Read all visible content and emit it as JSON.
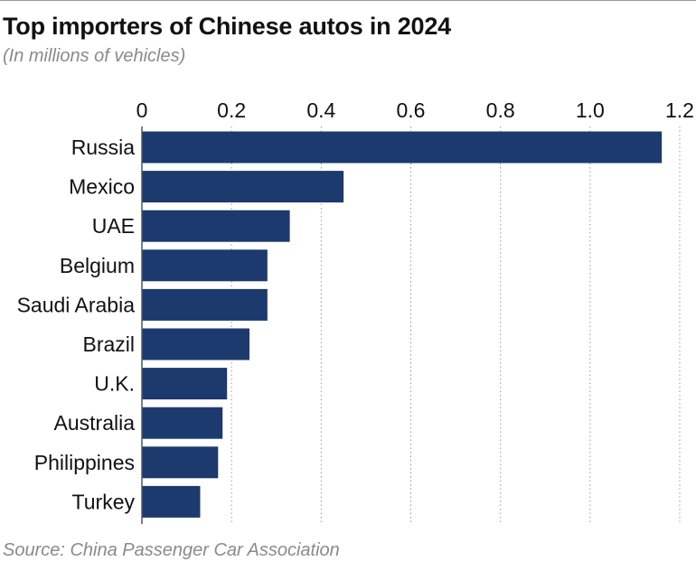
{
  "header": {
    "title": "Top importers of Chinese autos in 2024",
    "subtitle": "(In millions of vehicles)"
  },
  "footer": {
    "source": "Source: China Passenger Car Association"
  },
  "colors": {
    "bar": "#1c3a6e",
    "grid": "#9a9a9a",
    "axis": "#555555",
    "muted_text": "#8a8a8a"
  },
  "chart_data": {
    "type": "bar",
    "orientation": "horizontal",
    "title": "Top importers of Chinese autos in 2024",
    "subtitle": "(In millions of vehicles)",
    "xlabel": "",
    "ylabel": "",
    "xlim": [
      0,
      1.2
    ],
    "xticks": [
      0,
      0.2,
      0.4,
      0.6,
      0.8,
      1.0,
      1.2
    ],
    "xtick_labels": [
      "0",
      "0.2",
      "0.4",
      "0.6",
      "0.8",
      "1.0",
      "1.2"
    ],
    "axis_position": "top",
    "grid": "vertical dotted",
    "categories": [
      "Russia",
      "Mexico",
      "UAE",
      "Belgium",
      "Saudi Arabia",
      "Brazil",
      "U.K.",
      "Australia",
      "Philippines",
      "Turkey"
    ],
    "values": [
      1.16,
      0.45,
      0.33,
      0.28,
      0.28,
      0.24,
      0.19,
      0.18,
      0.17,
      0.13
    ]
  }
}
